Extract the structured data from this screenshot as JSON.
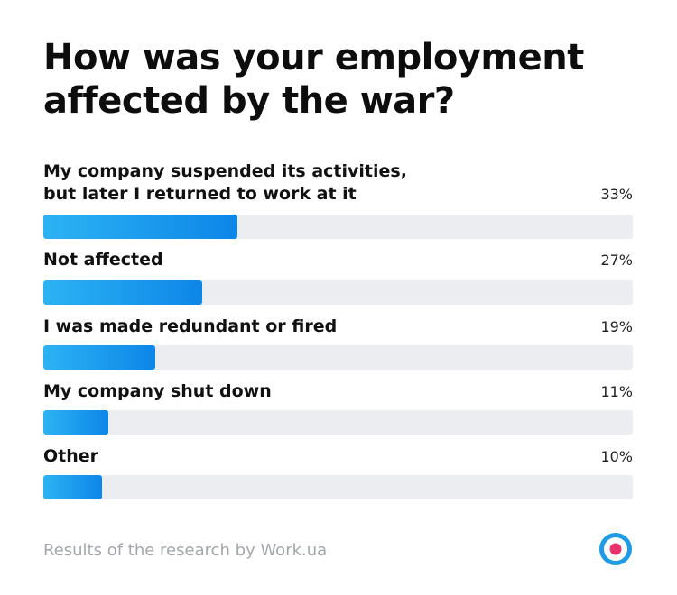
{
  "header": {
    "title": "How was your employment affected by the war?"
  },
  "footer": {
    "source": "Results of the research by Work.ua"
  },
  "logo": {
    "icon": "target-icon",
    "colors": {
      "ring": "#1e9be8",
      "center": "#e8336d"
    }
  },
  "colors": {
    "bar_start": "#2cb3f3",
    "bar_end": "#0d86e8",
    "track": "#ebedf0"
  },
  "chart_data": {
    "type": "bar",
    "orientation": "horizontal",
    "title": "How was your employment affected by the war?",
    "categories": [
      "My company suspended its activities,\nbut later I returned to work at it",
      "Not affected",
      "I was made redundant or fired",
      "My company shut down",
      "Other"
    ],
    "values": [
      33,
      27,
      19,
      11,
      10
    ],
    "value_labels": [
      "33%",
      "27%",
      "19%",
      "11%",
      "10%"
    ],
    "unit": "%",
    "xlim": [
      0,
      100
    ],
    "grid": false,
    "legend": "none"
  }
}
